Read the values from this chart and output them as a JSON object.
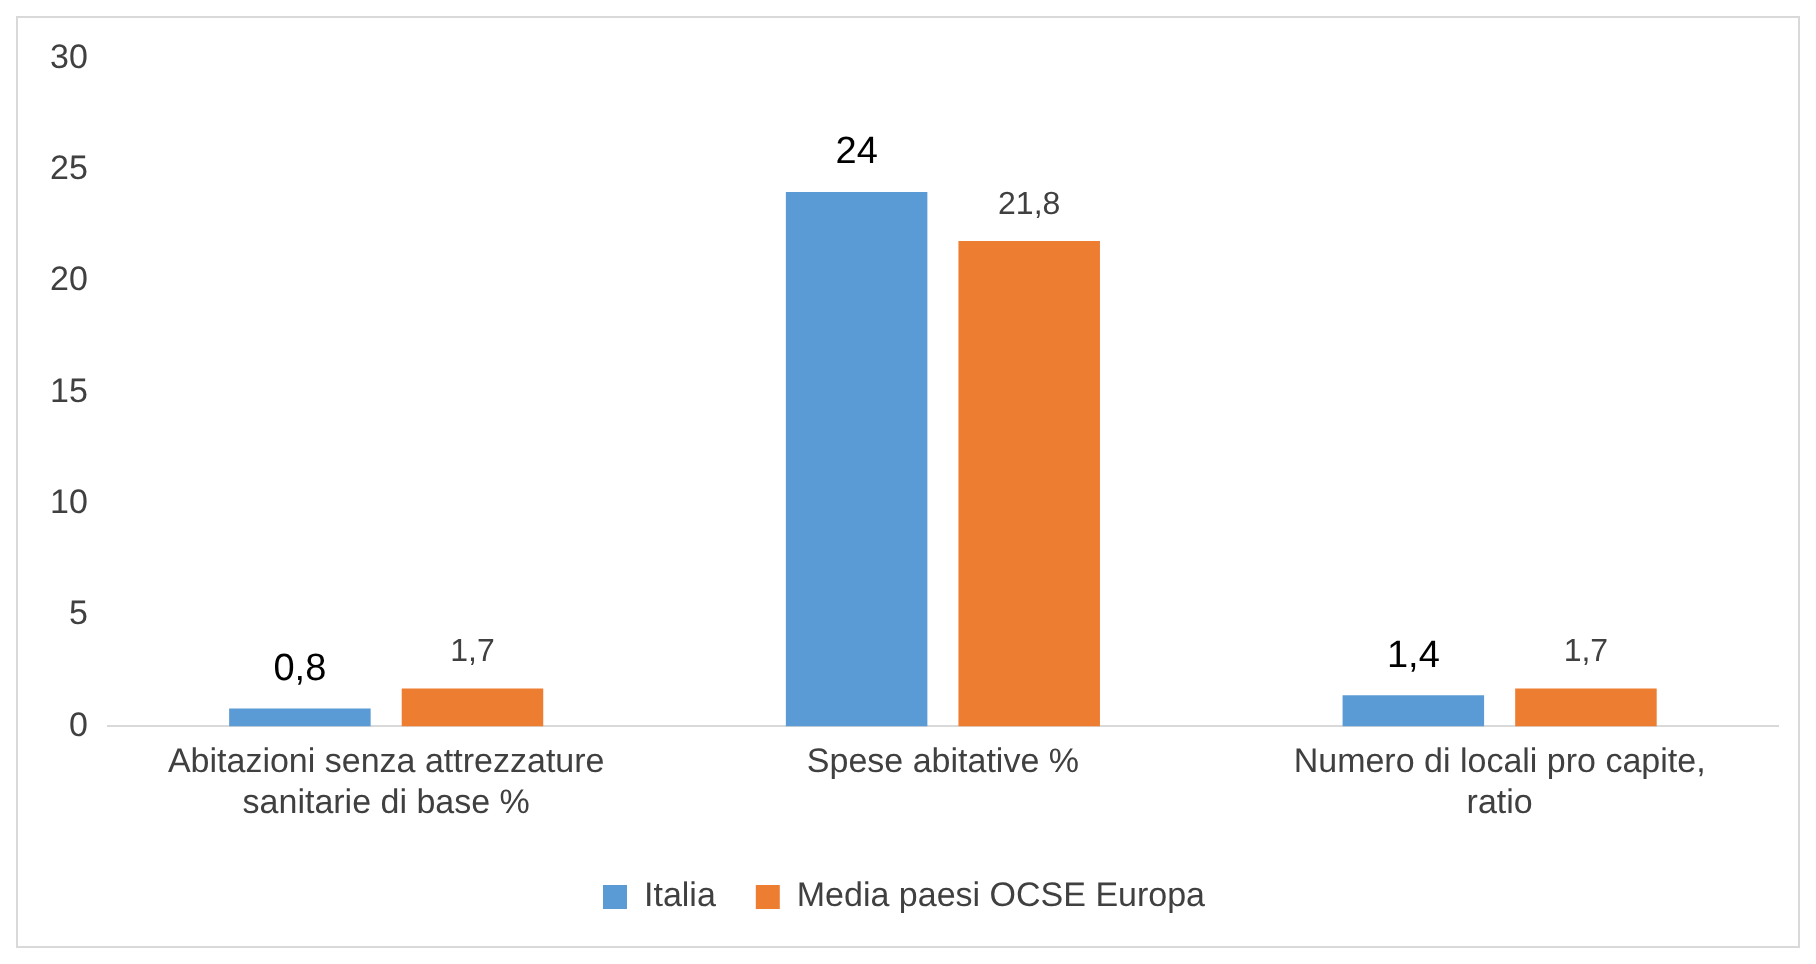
{
  "chart_data": {
    "type": "bar",
    "categories": [
      "Abitazioni senza attrezzature sanitarie di base %",
      "Spese abitative %",
      "Numero di locali pro capite, ratio"
    ],
    "series": [
      {
        "name": "Italia",
        "color": "#5b9bd5",
        "values": [
          0.8,
          24,
          1.4
        ],
        "value_labels": [
          "0,8",
          "24",
          "1,4"
        ]
      },
      {
        "name": "Media paesi OCSE Europa",
        "color": "#ed7d31",
        "values": [
          1.7,
          21.8,
          1.7
        ],
        "value_labels": [
          "1,7",
          "21,8",
          "1,7"
        ]
      }
    ],
    "ylim": [
      0,
      30
    ],
    "yticks": [
      0,
      5,
      10,
      15,
      20,
      25,
      30
    ],
    "grid": false,
    "legend": "bottom"
  }
}
